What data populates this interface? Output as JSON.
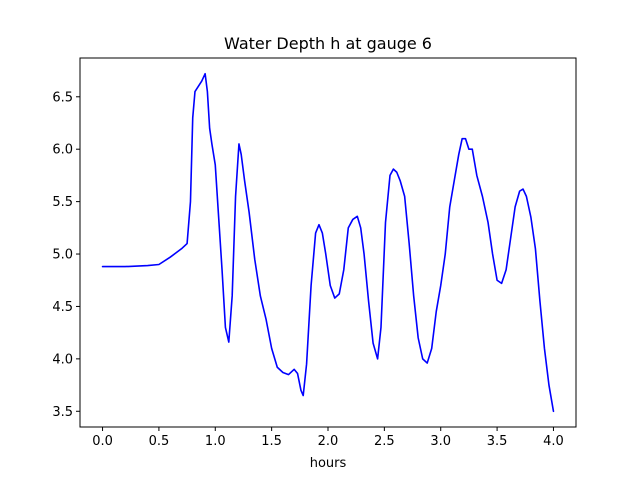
{
  "chart_data": {
    "type": "line",
    "title": "Water Depth h at gauge 6",
    "xlabel": "hours",
    "ylabel": "",
    "xlim": [
      -0.2,
      4.2
    ],
    "ylim": [
      3.35,
      6.87
    ],
    "xticks": [
      0.0,
      0.5,
      1.0,
      1.5,
      2.0,
      2.5,
      3.0,
      3.5,
      4.0
    ],
    "xtick_labels": [
      "0.0",
      "0.5",
      "1.0",
      "1.5",
      "2.0",
      "2.5",
      "3.0",
      "3.5",
      "4.0"
    ],
    "yticks": [
      3.5,
      4.0,
      4.5,
      5.0,
      5.5,
      6.0,
      6.5
    ],
    "ytick_labels": [
      "3.5",
      "4.0",
      "4.5",
      "5.0",
      "5.5",
      "6.0",
      "6.5"
    ],
    "grid": false,
    "series": [
      {
        "name": "",
        "color": "#0000ff",
        "x": [
          0.0,
          0.2,
          0.4,
          0.5,
          0.6,
          0.7,
          0.75,
          0.78,
          0.8,
          0.82,
          0.85,
          0.88,
          0.91,
          0.93,
          0.95,
          0.97,
          1.0,
          1.03,
          1.06,
          1.09,
          1.12,
          1.15,
          1.18,
          1.21,
          1.23,
          1.26,
          1.3,
          1.35,
          1.4,
          1.45,
          1.5,
          1.55,
          1.6,
          1.65,
          1.7,
          1.73,
          1.76,
          1.78,
          1.81,
          1.85,
          1.89,
          1.92,
          1.95,
          1.98,
          2.02,
          2.06,
          2.1,
          2.14,
          2.18,
          2.22,
          2.26,
          2.29,
          2.32,
          2.36,
          2.4,
          2.44,
          2.47,
          2.51,
          2.55,
          2.58,
          2.61,
          2.64,
          2.68,
          2.72,
          2.76,
          2.8,
          2.84,
          2.88,
          2.92,
          2.96,
          3.0,
          3.04,
          3.08,
          3.12,
          3.16,
          3.19,
          3.22,
          3.25,
          3.28,
          3.32,
          3.37,
          3.42,
          3.46,
          3.5,
          3.54,
          3.58,
          3.62,
          3.66,
          3.7,
          3.73,
          3.76,
          3.8,
          3.84,
          3.88,
          3.92,
          3.96,
          4.0
        ],
        "y": [
          4.88,
          4.88,
          4.89,
          4.9,
          4.97,
          5.05,
          5.1,
          5.5,
          6.3,
          6.55,
          6.6,
          6.65,
          6.72,
          6.55,
          6.2,
          6.05,
          5.85,
          5.35,
          4.85,
          4.3,
          4.16,
          4.6,
          5.55,
          6.05,
          5.95,
          5.7,
          5.4,
          4.95,
          4.6,
          4.38,
          4.1,
          3.92,
          3.87,
          3.85,
          3.9,
          3.86,
          3.7,
          3.65,
          3.95,
          4.7,
          5.2,
          5.28,
          5.2,
          5.0,
          4.7,
          4.58,
          4.62,
          4.85,
          5.25,
          5.33,
          5.36,
          5.25,
          5.0,
          4.55,
          4.15,
          4.0,
          4.3,
          5.3,
          5.75,
          5.81,
          5.78,
          5.7,
          5.55,
          5.1,
          4.6,
          4.2,
          4.0,
          3.96,
          4.1,
          4.45,
          4.7,
          5.0,
          5.45,
          5.7,
          5.95,
          6.1,
          6.1,
          6.0,
          6.0,
          5.75,
          5.55,
          5.3,
          5.0,
          4.75,
          4.72,
          4.85,
          5.15,
          5.45,
          5.6,
          5.62,
          5.55,
          5.35,
          5.05,
          4.55,
          4.1,
          3.75,
          3.5
        ]
      }
    ]
  }
}
